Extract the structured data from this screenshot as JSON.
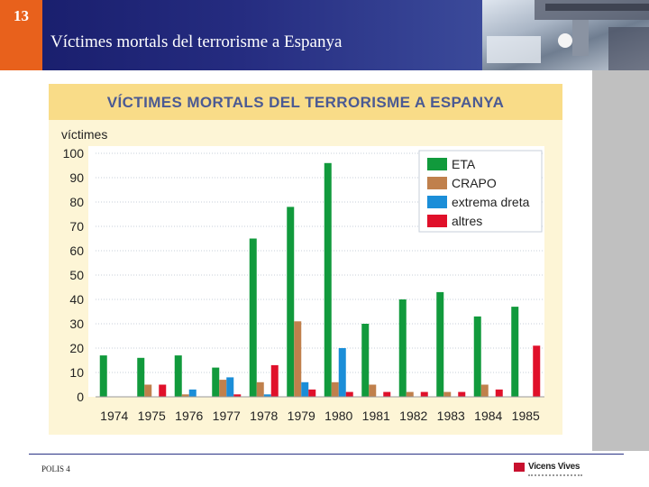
{
  "slide": {
    "number": "13",
    "title": "Víctimes mortals del terrorisme a Espanya",
    "footer_label": "POLIS 4",
    "publisher": "Vicens Vives"
  },
  "colors": {
    "ETA": "#119a3c",
    "CRAPO": "#c0804c",
    "extrema dreta": "#1b8ed8",
    "altres": "#e0102a"
  },
  "chart_data": {
    "type": "bar",
    "title": "VÍCTIMES MORTALS DEL TERRORISME A ESPANYA",
    "ylabel": "víctimes",
    "xlabel": "",
    "ylim": [
      0,
      100
    ],
    "yticks": [
      0,
      10,
      20,
      30,
      40,
      50,
      60,
      70,
      80,
      90,
      100
    ],
    "grid": true,
    "legend_position": "top-right",
    "categories": [
      "1974",
      "1975",
      "1976",
      "1977",
      "1978",
      "1979",
      "1980",
      "1981",
      "1982",
      "1983",
      "1984",
      "1985"
    ],
    "series": [
      {
        "name": "ETA",
        "values": [
          17,
          16,
          17,
          12,
          65,
          78,
          96,
          30,
          40,
          43,
          33,
          37
        ]
      },
      {
        "name": "CRAPO",
        "values": [
          0,
          5,
          1,
          7,
          6,
          31,
          6,
          5,
          2,
          2,
          5,
          0
        ]
      },
      {
        "name": "extrema dreta",
        "values": [
          0,
          0,
          3,
          8,
          1,
          6,
          20,
          0,
          0,
          0,
          0,
          0
        ]
      },
      {
        "name": "altres",
        "values": [
          0,
          5,
          0,
          1,
          13,
          3,
          2,
          2,
          2,
          2,
          3,
          21
        ]
      }
    ]
  }
}
